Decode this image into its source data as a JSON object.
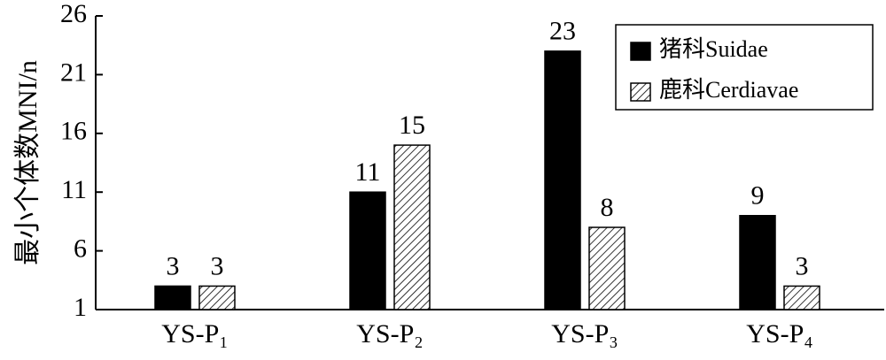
{
  "chart_data": {
    "type": "bar",
    "y_label": "最小个体数MNI/n",
    "categories": [
      "YS-P₁",
      "YS-P₂",
      "YS-P₃",
      "YS-P₄"
    ],
    "series": [
      {
        "name": "猪科Suidae",
        "color": "#000000",
        "hatch": false,
        "values": [
          3,
          11,
          23,
          9
        ]
      },
      {
        "name": "鹿科Cerdiavae",
        "color": "#000000",
        "hatch": true,
        "values": [
          3,
          15,
          8,
          3
        ]
      }
    ],
    "ylim": [
      1,
      26
    ],
    "yticks": [
      1,
      6,
      11,
      16,
      21,
      26
    ],
    "legend": "upper right"
  }
}
